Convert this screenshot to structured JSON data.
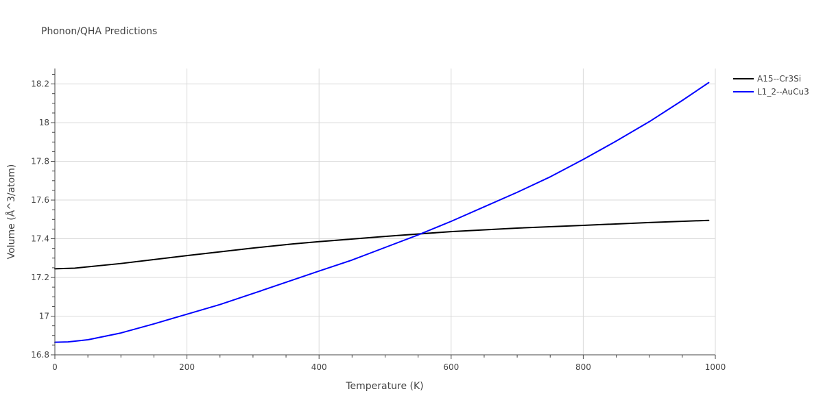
{
  "chart_data": {
    "type": "line",
    "title": "Phonon/QHA Predictions",
    "xlabel": "Temperature (K)",
    "ylabel": "Volume (Å^3/atom)",
    "xlim": [
      0,
      1000
    ],
    "ylim": [
      16.8,
      18.28
    ],
    "x_ticks": [
      0,
      200,
      400,
      600,
      800,
      1000
    ],
    "x_tick_labels": [
      "0",
      "200",
      "400",
      "600",
      "800",
      "1000"
    ],
    "y_ticks": [
      16.8,
      17.0,
      17.2,
      17.4,
      17.6,
      17.8,
      18.0,
      18.2
    ],
    "y_tick_labels": [
      "16.8",
      "17",
      "17.2",
      "17.4",
      "17.6",
      "17.8",
      "18",
      "18.2"
    ],
    "grid": true,
    "legend_position": "top-right",
    "series": [
      {
        "name": "A15--Cr3Si",
        "color": "#000000",
        "x": [
          0,
          30,
          100,
          200,
          300,
          360,
          400,
          500,
          600,
          700,
          800,
          900,
          990
        ],
        "y": [
          17.245,
          17.248,
          17.272,
          17.313,
          17.352,
          17.373,
          17.385,
          17.412,
          17.437,
          17.455,
          17.469,
          17.484,
          17.495
        ]
      },
      {
        "name": "L1_2--AuCu3",
        "color": "#0000ff",
        "x": [
          0,
          20,
          50,
          100,
          150,
          200,
          250,
          300,
          350,
          400,
          450,
          500,
          550,
          600,
          650,
          700,
          750,
          800,
          850,
          900,
          950,
          990
        ],
        "y": [
          16.865,
          16.867,
          16.878,
          16.913,
          16.96,
          17.01,
          17.06,
          17.117,
          17.175,
          17.233,
          17.29,
          17.355,
          17.42,
          17.49,
          17.565,
          17.64,
          17.72,
          17.81,
          17.905,
          18.005,
          18.115,
          18.207
        ]
      }
    ]
  }
}
